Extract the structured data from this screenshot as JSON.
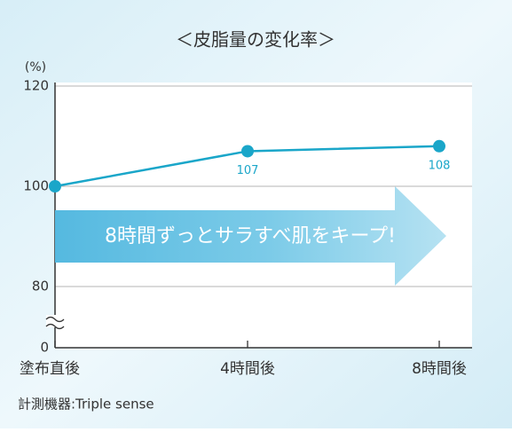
{
  "chart_data": {
    "type": "line",
    "title": "＜皮脂量の変化率＞",
    "y_unit": "(%)",
    "categories": [
      "塗布直後",
      "4時間後",
      "8時間後"
    ],
    "series": [
      {
        "name": "皮脂量の変化率",
        "color": "#1aa6c9",
        "values": [
          100,
          107,
          108
        ],
        "value_labels": [
          null,
          "107",
          "108"
        ]
      }
    ],
    "ylim": [
      0,
      120
    ],
    "yticks": [
      0,
      80,
      100,
      120
    ],
    "axis_break": [
      0,
      80
    ],
    "grid": true,
    "callout": "8時間ずっとサラすべ肌をキープ!",
    "footnote": "計測機器:Triple sense"
  }
}
